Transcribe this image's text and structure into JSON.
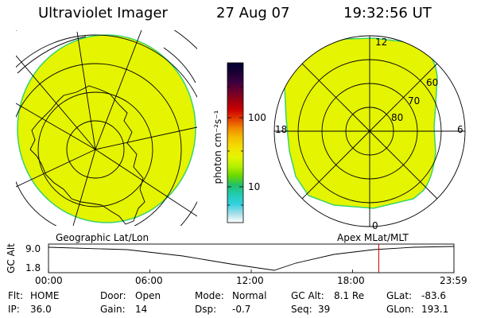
{
  "header": {
    "title": "Ultraviolet Imager",
    "date": "27 Aug 07",
    "time": "19:32:56 UT"
  },
  "colors": {
    "aurora_fill": "#e5f400",
    "aurora_edge": "#3ad36a",
    "grid_line": "#000000",
    "marker_line": "#cc0000"
  },
  "left_panel": {
    "label": "Geographic Lat/Lon"
  },
  "right_panel": {
    "label": "Apex MLat/MLT",
    "mlt_labels": {
      "top": "12",
      "left": "18",
      "right": "6",
      "bottom": "0"
    },
    "lat_labels": [
      "60",
      "70",
      "80"
    ]
  },
  "colorbar": {
    "unit_label": "photon cm⁻²s⁻¹",
    "ticks": [
      "100",
      "10"
    ],
    "stops": [
      "#000033",
      "#1a0033",
      "#3a0040",
      "#6a0030",
      "#9a0010",
      "#cc0000",
      "#e44000",
      "#f08c00",
      "#f4c000",
      "#f4e000",
      "#e5f400",
      "#b6f000",
      "#6cd800",
      "#22c06a",
      "#22cbb0",
      "#30d0e0",
      "#a0dde8",
      "#ffffff"
    ]
  },
  "altitude_plot": {
    "y_label": "GC Alt",
    "y_ticks": [
      "9.0",
      "1.8"
    ],
    "x_ticks": [
      "00:00",
      "06:00",
      "12:00",
      "18:00",
      "23:59"
    ],
    "current_time_hours": 19.55
  },
  "status": {
    "flt_label": "Flt:",
    "flt_value": "HOME",
    "ip_label": "IP:",
    "ip_value": "36.0",
    "door_label": "Door:",
    "door_value": "Open",
    "gain_label": "Gain:",
    "gain_value": "14",
    "mode_label": "Mode:",
    "mode_value": "Normal",
    "dsp_label": "Dsp:",
    "dsp_value": "-0.7",
    "gcalt_label": "GC Alt:",
    "gcalt_value": "8.1 Re",
    "seq_label": "Seq:",
    "seq_value": "39",
    "glat_label": "GLat:",
    "glat_value": "-83.6",
    "glon_label": "GLon:",
    "glon_value": "193.1"
  }
}
